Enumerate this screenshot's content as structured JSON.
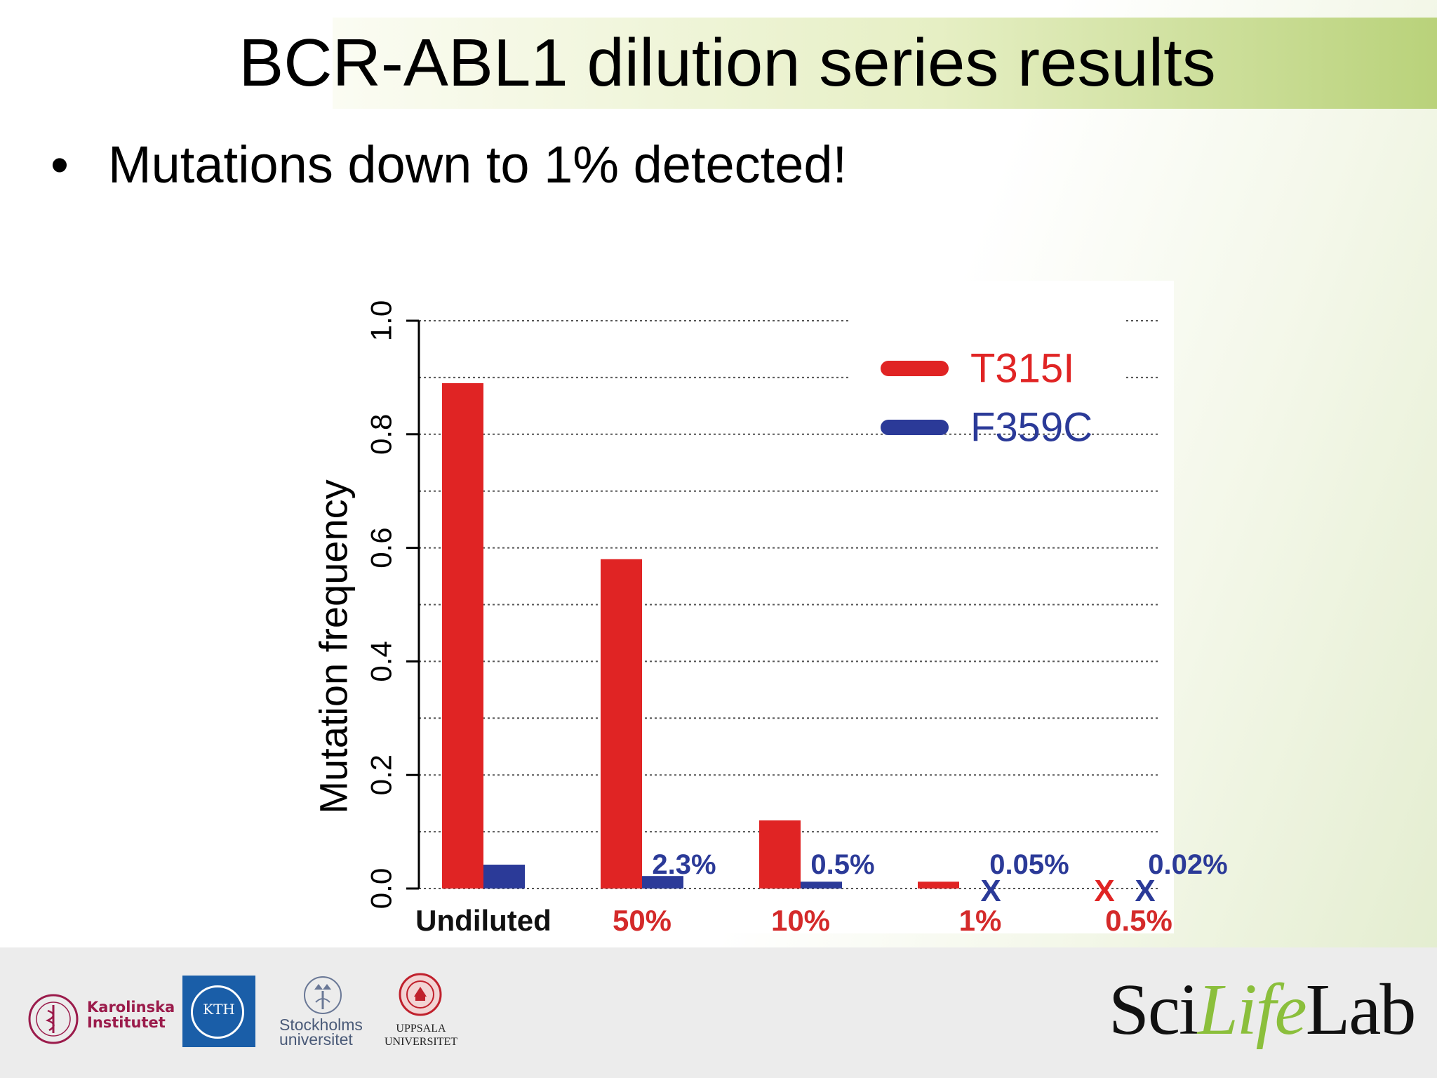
{
  "slide": {
    "title": "BCR-ABL1 dilution series results",
    "bullet": "•",
    "bullet_text": "Mutations down to 1% detected!"
  },
  "chart_data": {
    "type": "bar",
    "title": "",
    "xlabel": "",
    "ylabel": "Mutation frequency",
    "ylim": [
      0,
      1.0
    ],
    "yticks": [
      "0.0",
      "0.2",
      "0.4",
      "0.6",
      "0.8",
      "1.0"
    ],
    "grid": "horizontal dotted",
    "legend_position": "top-right",
    "categories": [
      "Undiluted",
      "50%",
      "10%",
      "1%",
      "0.5%"
    ],
    "category_colors": [
      "#111111",
      "#d42a2a",
      "#d42a2a",
      "#d42a2a",
      "#d42a2a"
    ],
    "series": [
      {
        "name": "T315I",
        "color": "#e02424",
        "values": [
          0.89,
          0.58,
          0.12,
          0.012,
          0
        ],
        "detected": [
          true,
          true,
          true,
          true,
          false
        ]
      },
      {
        "name": "F359C",
        "color": "#2b3a98",
        "values": [
          0.042,
          0.022,
          0.012,
          0,
          0
        ],
        "detected": [
          true,
          true,
          true,
          false,
          false
        ]
      }
    ],
    "annotations": [
      "",
      "2.3%",
      "0.5%",
      "0.05%",
      "0.02%"
    ],
    "not_detected_mark": "X"
  },
  "footer": {
    "ki_text": "Karolinska\nInstitutet",
    "kth_text": "KTH",
    "su_text": "Stockholms\nuniversitet",
    "uu_text": "UPPSALA\nUNIVERSITET",
    "scilifelab_a": "Sci",
    "scilifelab_b": "Life",
    "scilifelab_c": "Lab",
    "brand_green": "#8bbf3c",
    "ki_color": "#9b1b4b",
    "kth_color": "#1a5ea8"
  }
}
